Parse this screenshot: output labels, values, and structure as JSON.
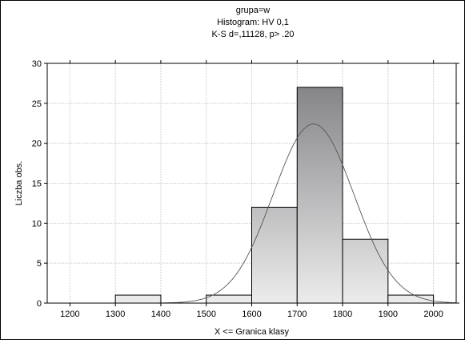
{
  "chart_data": {
    "type": "bar",
    "title": [
      "grupa=w",
      "Histogram: HV 0,1",
      "K-S d=,11128, p> .20"
    ],
    "xlabel": "X <= Granica klasy",
    "ylabel": "Liczba obs.",
    "xlim": [
      1150,
      2050
    ],
    "ylim": [
      0,
      30
    ],
    "xticks": [
      1200,
      1300,
      1400,
      1500,
      1600,
      1700,
      1800,
      1900,
      2000
    ],
    "yticks": [
      0,
      5,
      10,
      15,
      20,
      25,
      30
    ],
    "bins": [
      {
        "start": 1300,
        "end": 1400,
        "count": 1
      },
      {
        "start": 1400,
        "end": 1500,
        "count": 0
      },
      {
        "start": 1500,
        "end": 1600,
        "count": 1
      },
      {
        "start": 1600,
        "end": 1700,
        "count": 12
      },
      {
        "start": 1700,
        "end": 1800,
        "count": 27
      },
      {
        "start": 1800,
        "end": 1900,
        "count": 8
      },
      {
        "start": 1900,
        "end": 2000,
        "count": 1
      }
    ],
    "normal_curve": {
      "mean": 1736,
      "sd": 89,
      "n": 50,
      "bin_width": 100
    },
    "grid": true,
    "colors": {
      "bar_top": "#7a7a7e",
      "bar_bottom": "#ececec",
      "grid": "#c8c8c8",
      "curve": "#555555"
    }
  }
}
